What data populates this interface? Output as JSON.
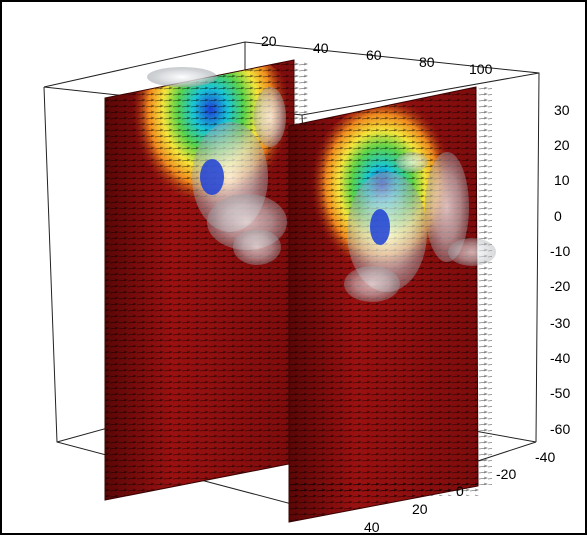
{
  "figure": {
    "type": "3d-volume-rendering",
    "description_tags": [
      "vector-field-planes",
      "isosurfaces",
      "bounding-box-axes"
    ],
    "colors": {
      "plane_base": "#8a0f0f",
      "plane_dark": "#5a0606",
      "arrow": "#000000",
      "isosurface": "#c9ccd0",
      "vortex_core": "#1d3fd6",
      "cyan": "#19c6d6",
      "green": "#5bd34a",
      "yellow": "#f4e53b",
      "orange": "#f08a1f"
    },
    "axes": {
      "top_ticks": [
        "20",
        "40",
        "60",
        "80",
        "100"
      ],
      "right_ticks": [
        "30",
        "20",
        "10",
        "0",
        "-10",
        "-20",
        "-30",
        "-40",
        "-50",
        "-60"
      ],
      "bottom_ticks": [
        "-40",
        "-20",
        "0",
        "20",
        "40"
      ]
    }
  }
}
